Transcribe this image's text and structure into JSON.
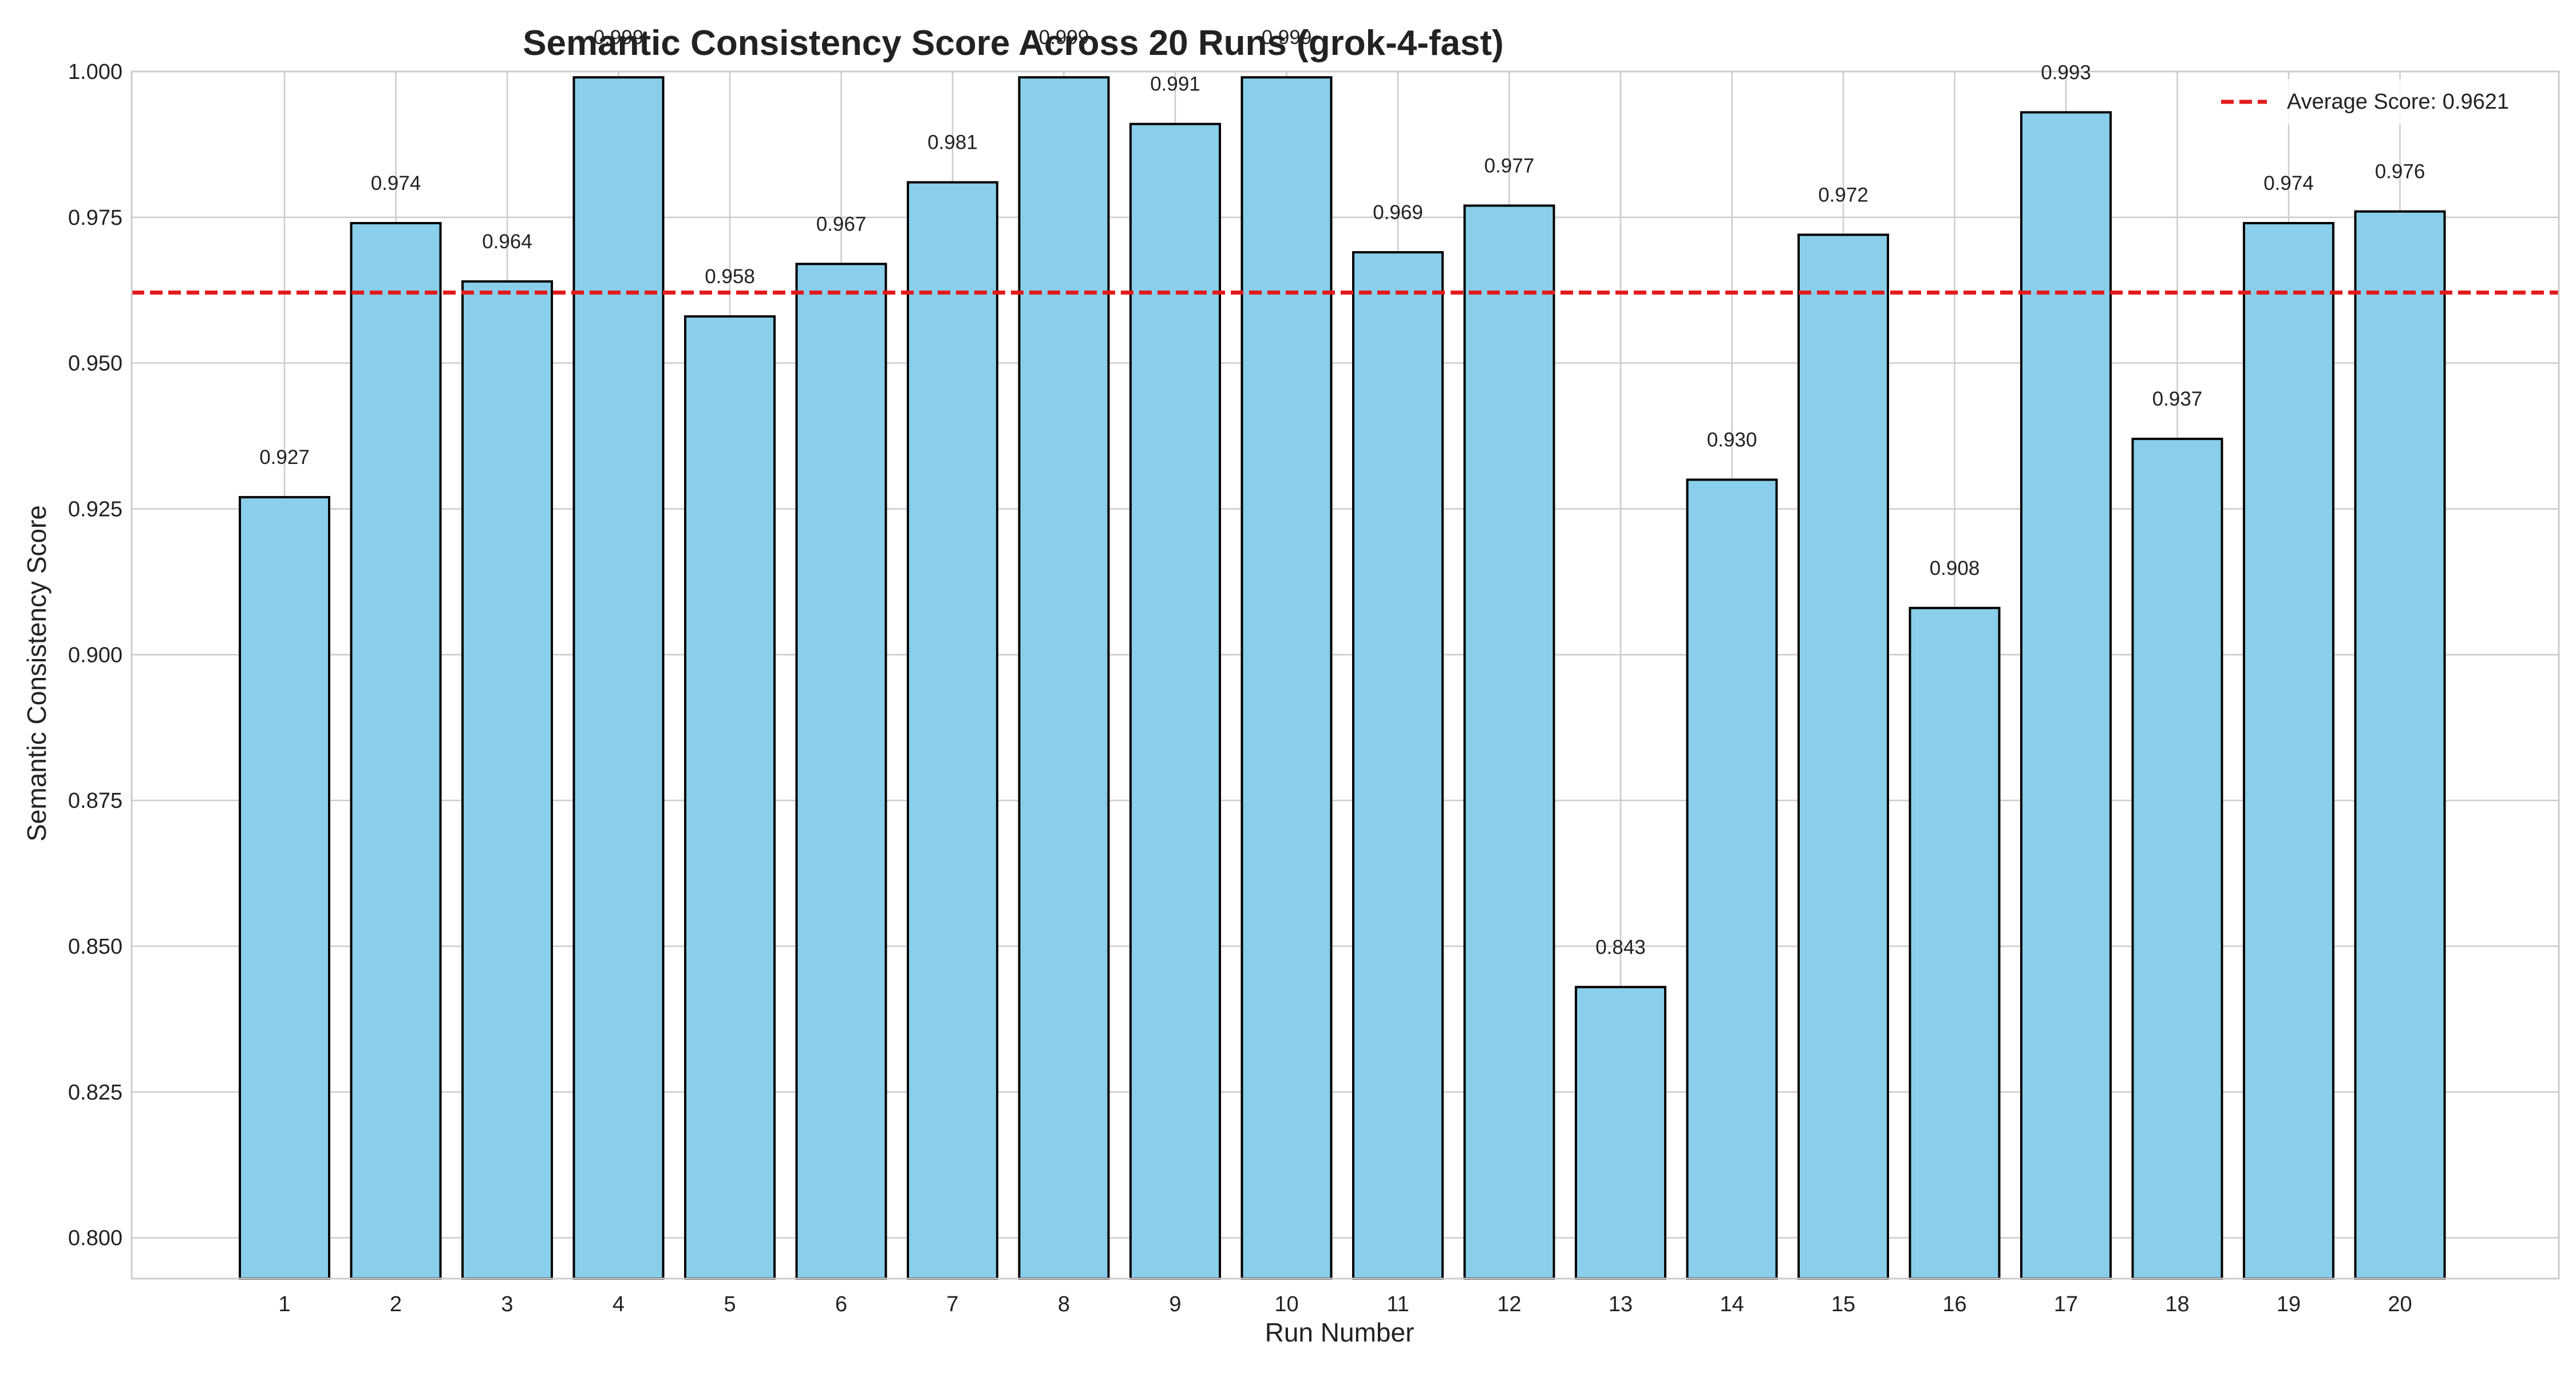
{
  "chart_data": {
    "type": "bar",
    "title": "Semantic Consistency Score Across 20 Runs (grok-4-fast)",
    "xlabel": "Run Number",
    "ylabel": "Semantic Consistency Score",
    "categories": [
      "1",
      "2",
      "3",
      "4",
      "5",
      "6",
      "7",
      "8",
      "9",
      "10",
      "11",
      "12",
      "13",
      "14",
      "15",
      "16",
      "17",
      "18",
      "19",
      "20"
    ],
    "values": [
      0.927,
      0.974,
      0.964,
      0.999,
      0.958,
      0.967,
      0.981,
      0.999,
      0.991,
      0.999,
      0.969,
      0.977,
      0.843,
      0.93,
      0.972,
      0.908,
      0.993,
      0.937,
      0.974,
      0.976
    ],
    "data_labels": [
      "0.927",
      "0.974",
      "0.964",
      "0.999",
      "0.958",
      "0.967",
      "0.981",
      "0.999",
      "0.991",
      "0.999",
      "0.969",
      "0.977",
      "0.843",
      "0.930",
      "0.972",
      "0.908",
      "0.993",
      "0.937",
      "0.974",
      "0.976"
    ],
    "ylim": [
      0.793,
      1.0
    ],
    "yticks": [
      0.8,
      0.825,
      0.85,
      0.875,
      0.9,
      0.925,
      0.95,
      0.975,
      1.0
    ],
    "ytick_labels": [
      "0.800",
      "0.825",
      "0.850",
      "0.875",
      "0.900",
      "0.925",
      "0.950",
      "0.975",
      "1.000"
    ],
    "average": 0.9621,
    "legend": {
      "placement": "top-right",
      "entries": [
        {
          "label": "Average Score: 0.9621",
          "style": "dashed-line",
          "color": "#e31a1c"
        }
      ]
    },
    "grid": true,
    "colors": {
      "bar_fill": "#89ceea",
      "bar_edge": "#000000",
      "average_line": "#e31a1c",
      "grid": "#cccccc",
      "axes_edge": "#cccccc",
      "text": "#222222"
    }
  }
}
